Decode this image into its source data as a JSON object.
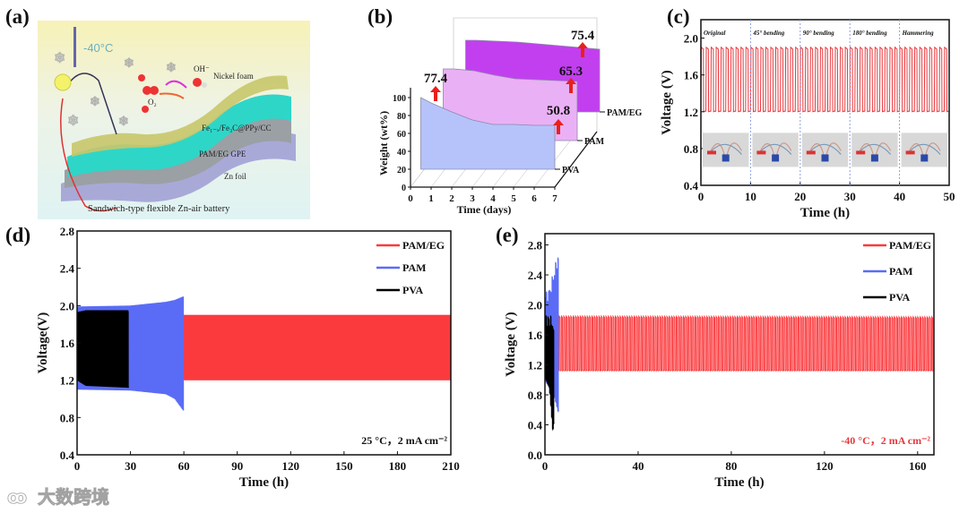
{
  "panels": {
    "a": "(a)",
    "b": "(b)",
    "c": "(c)",
    "d": "(d)",
    "e": "(e)"
  },
  "panel_a": {
    "temperature": "-40°C",
    "oh": "OH⁻",
    "nickel_foam": "Nickel foam",
    "o2": "O₂",
    "cathode": "Fe₁₋ₓ/Fe₃C@PPy/CC",
    "electrolyte": "PAM/EG  GPE",
    "anode": "Zn foil",
    "caption": "Sandwich-type flexible Zn-air battery"
  },
  "watermark": "大数跨境",
  "chart_data": [
    {
      "id": "b",
      "type": "area",
      "title": "",
      "xlabel": "Time (days)",
      "ylabel": "Weight  (wt%)",
      "xlim": [
        0,
        7
      ],
      "ylim": [
        0,
        100
      ],
      "xticks": [
        0,
        1,
        2,
        3,
        4,
        5,
        6,
        7
      ],
      "yticks": [
        0,
        20,
        40,
        60,
        80,
        100
      ],
      "x": [
        0.5,
        1,
        2,
        3,
        4,
        5,
        6,
        7
      ],
      "series": [
        {
          "name": "PVA",
          "color": "#b6c3fb",
          "values": [
            100,
            94,
            84,
            75,
            70,
            70,
            69,
            69
          ]
        },
        {
          "name": "PAM",
          "color": "#eab0f5",
          "values": [
            100,
            100,
            98,
            93,
            89,
            88,
            87,
            86
          ]
        },
        {
          "name": "PAM/EG",
          "color": "#c23ff0",
          "values": [
            100,
            100,
            99,
            98,
            96,
            94,
            92,
            90
          ]
        }
      ],
      "annotations": [
        "77.4",
        "50.8",
        "65.3",
        "75.4"
      ]
    },
    {
      "id": "c",
      "type": "line",
      "xlabel": "Time (h)",
      "ylabel": "Voltage (V)",
      "xlim": [
        0,
        50
      ],
      "ylim": [
        0.4,
        2.2
      ],
      "xticks": [
        0,
        10,
        20,
        30,
        40,
        50
      ],
      "yticks": [
        0.4,
        0.8,
        1.2,
        1.6,
        2.0
      ],
      "series": [
        {
          "name": "cycling",
          "color": "#e8383d",
          "envelope": [
            [
              0,
              1.2,
              1.9
            ],
            [
              50,
              1.2,
              1.9
            ]
          ],
          "cycles": 50
        }
      ],
      "segments": [
        "Original",
        "45° bending",
        "90° bending",
        "180° bending",
        "Hammering"
      ]
    },
    {
      "id": "d",
      "type": "line",
      "xlabel": "Time (h)",
      "ylabel": "Voltage(V)",
      "xlim": [
        0,
        210
      ],
      "ylim": [
        0.4,
        2.8
      ],
      "xticks": [
        0,
        30,
        60,
        90,
        120,
        150,
        180,
        210
      ],
      "yticks": [
        0.4,
        0.8,
        1.2,
        1.6,
        2.0,
        2.4,
        2.8
      ],
      "legend_position": "top-right",
      "annotation": "25 °C，2 mA cm⁻²",
      "series": [
        {
          "name": "PAM/EG",
          "color": "#fb3a3e",
          "envelope": [
            [
              60,
              1.2,
              1.9
            ],
            [
              210,
              1.2,
              1.9
            ]
          ],
          "cycles": 300
        },
        {
          "name": "PAM",
          "color": "#5a6cf5",
          "envelope": [
            [
              0,
              1.1,
              1.99
            ],
            [
              30,
              1.09,
              2.0
            ],
            [
              50,
              1.05,
              2.04
            ],
            [
              55,
              1.0,
              2.06
            ],
            [
              60,
              0.87,
              2.1
            ]
          ],
          "cycles": 120
        },
        {
          "name": "PVA",
          "color": "#000000",
          "envelope": [
            [
              0,
              1.2,
              1.93
            ],
            [
              5,
              1.14,
              1.95
            ],
            [
              29,
              1.12,
              1.95
            ]
          ],
          "cycles": 60
        }
      ]
    },
    {
      "id": "e",
      "type": "line",
      "xlabel": "Time (h)",
      "ylabel": "Voltage (V)",
      "xlim": [
        0,
        167
      ],
      "ylim": [
        0.0,
        2.95
      ],
      "xticks": [
        0,
        40,
        80,
        120,
        160
      ],
      "yticks": [
        0.0,
        0.4,
        0.8,
        1.2,
        1.6,
        2.0,
        2.4,
        2.8
      ],
      "legend_position": "top-right",
      "annotation": "-40 °C，2 mA cm⁻²",
      "annotation_color": "#e8383d",
      "series": [
        {
          "name": "PAM/EG",
          "color": "#fb3a3e",
          "envelope": [
            [
              6,
              1.12,
              1.85
            ],
            [
              167,
              1.12,
              1.84
            ]
          ],
          "cycles": 160
        },
        {
          "name": "PAM",
          "color": "#5a6cf5",
          "envelope": [
            [
              0,
              1.0,
              2.1
            ],
            [
              2,
              0.9,
              2.15
            ],
            [
              4,
              0.8,
              2.4
            ],
            [
              6,
              0.55,
              2.65
            ]
          ],
          "cycles": 12
        },
        {
          "name": "PVA",
          "color": "#000000",
          "envelope": [
            [
              0,
              1.05,
              1.8
            ],
            [
              2,
              0.9,
              1.8
            ],
            [
              3.5,
              0.3,
              1.75
            ],
            [
              4,
              0.5,
              1.5
            ]
          ],
          "cycles": 10
        }
      ]
    }
  ]
}
